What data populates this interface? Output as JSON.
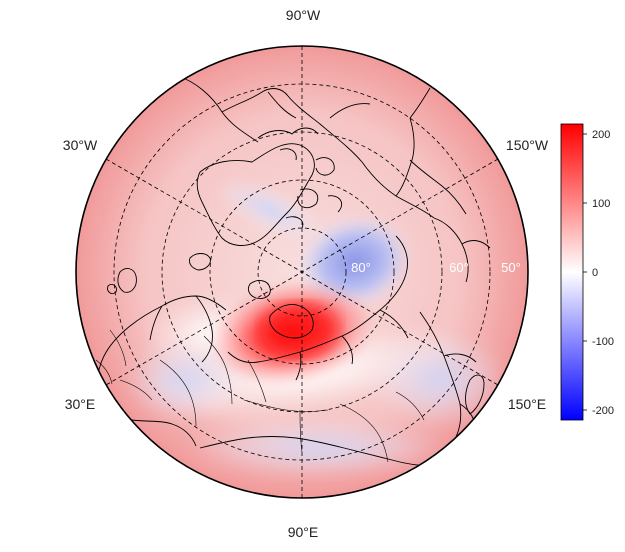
{
  "map": {
    "projection": "north-polar-stereographic",
    "field_shading": "diverging blue-white-red",
    "longitude_labels": {
      "top": "90°W",
      "upper_left": "30°W",
      "upper_right": "150°W",
      "lower_left": "30°E",
      "lower_right": "150°E",
      "bottom": "90°E"
    },
    "latitude_labels": [
      "80°",
      "60°",
      "50°"
    ],
    "features": [
      "coastlines",
      "country-borders",
      "graticule-dashed"
    ]
  },
  "colorbar": {
    "ticks": [
      "200",
      "100",
      "0",
      "-100",
      "-200"
    ],
    "range": [
      -215,
      215
    ],
    "colors": {
      "low": "#0000ff",
      "mid": "#ffffff",
      "high": "#ff0000"
    }
  }
}
